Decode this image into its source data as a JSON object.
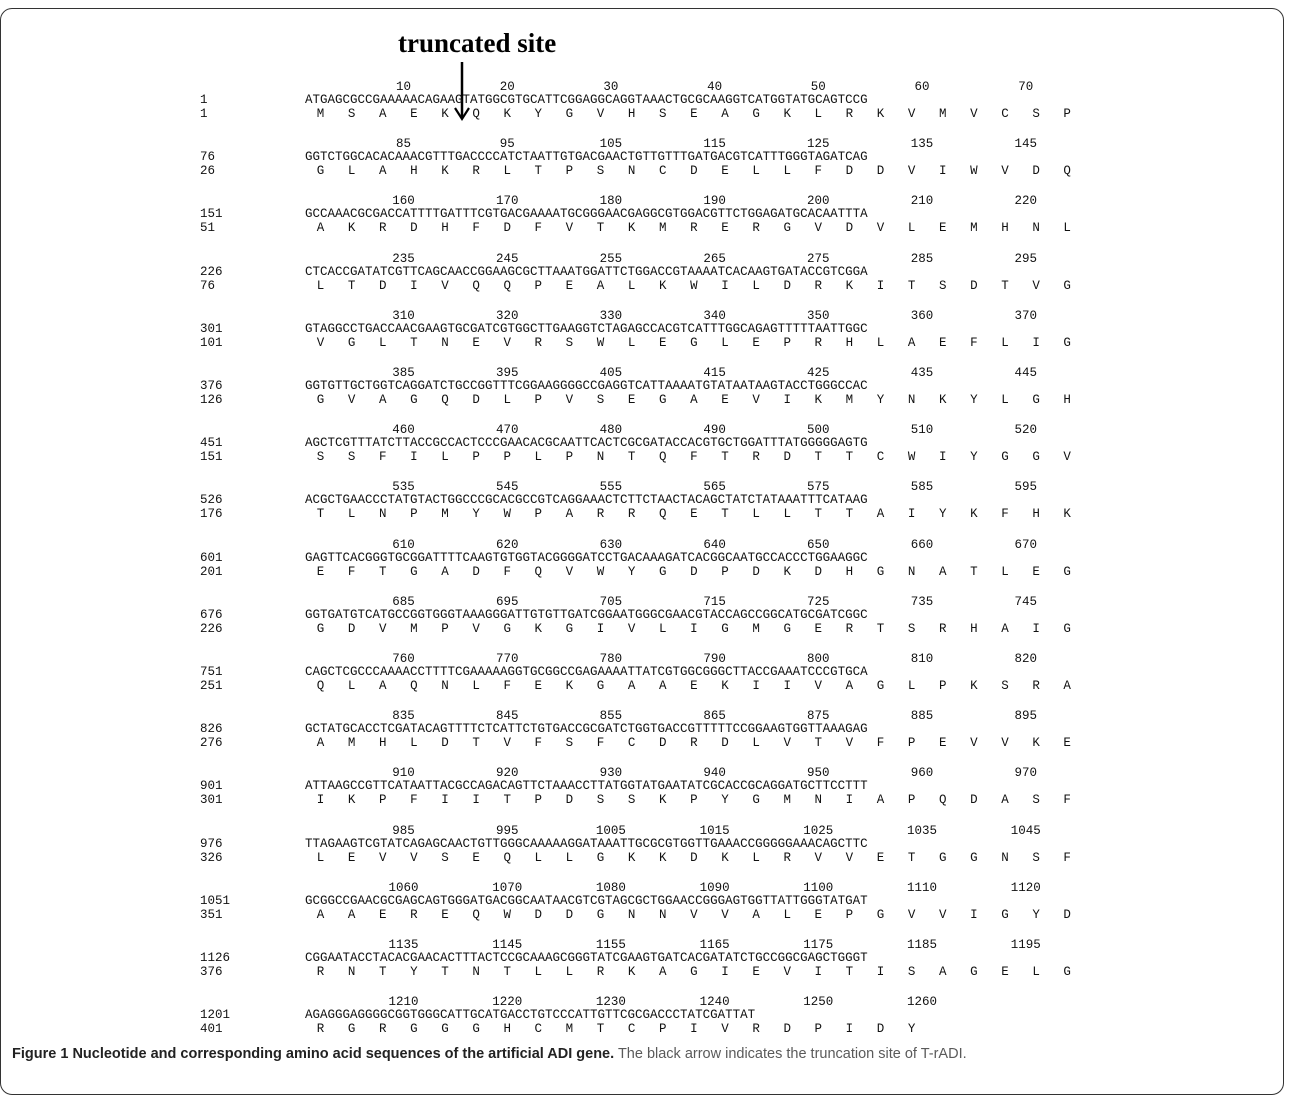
{
  "annotation": {
    "label": "truncated site"
  },
  "caption": {
    "figure_label": "Figure 1",
    "title": "Nucleotide and corresponding amino acid sequences of the artificial ADI gene.",
    "text": "The black arrow indicates the truncation site of T-rADI."
  },
  "blocks": [
    {
      "positions": [
        "10",
        "20",
        "30",
        "40",
        "50",
        "60",
        "70"
      ],
      "nt_start": "1",
      "aa_start": "1",
      "nt": "ATGAGCGCCGAAAAACAGAAGTATGGCGTGCATTCGGAGGCAGGTAAACTGCGCAAGGTCATGGTATGCAGTCCG",
      "aa": [
        "M",
        "S",
        "A",
        "E",
        "K",
        "Q",
        "K",
        "Y",
        "G",
        "V",
        "H",
        "S",
        "E",
        "A",
        "G",
        "K",
        "L",
        "R",
        "K",
        "V",
        "M",
        "V",
        "C",
        "S",
        "P"
      ]
    },
    {
      "positions": [
        "85",
        "95",
        "105",
        "115",
        "125",
        "135",
        "145"
      ],
      "nt_start": "76",
      "aa_start": "26",
      "nt": "GGTCTGGCACACAAACGTTTGACCCCATCTAATTGTGACGAACTGTTGTTTGATGACGTCATTTGGGTAGATCAG",
      "aa": [
        "G",
        "L",
        "A",
        "H",
        "K",
        "R",
        "L",
        "T",
        "P",
        "S",
        "N",
        "C",
        "D",
        "E",
        "L",
        "L",
        "F",
        "D",
        "D",
        "V",
        "I",
        "W",
        "V",
        "D",
        "Q"
      ]
    },
    {
      "positions": [
        "160",
        "170",
        "180",
        "190",
        "200",
        "210",
        "220"
      ],
      "nt_start": "151",
      "aa_start": "51",
      "nt": "GCCAAACGCGACCATTTTGATTTCGTGACGAAAATGCGGGAACGAGGCGTGGACGTTCTGGAGATGCACAATTTA",
      "aa": [
        "A",
        "K",
        "R",
        "D",
        "H",
        "F",
        "D",
        "F",
        "V",
        "T",
        "K",
        "M",
        "R",
        "E",
        "R",
        "G",
        "V",
        "D",
        "V",
        "L",
        "E",
        "M",
        "H",
        "N",
        "L"
      ]
    },
    {
      "positions": [
        "235",
        "245",
        "255",
        "265",
        "275",
        "285",
        "295"
      ],
      "nt_start": "226",
      "aa_start": "76",
      "nt": "CTCACCGATATCGTTCAGCAACCGGAAGCGCTTAAATGGATTCTGGACCGTAAAATCACAAGTGATACCGTCGGA",
      "aa": [
        "L",
        "T",
        "D",
        "I",
        "V",
        "Q",
        "Q",
        "P",
        "E",
        "A",
        "L",
        "K",
        "W",
        "I",
        "L",
        "D",
        "R",
        "K",
        "I",
        "T",
        "S",
        "D",
        "T",
        "V",
        "G"
      ]
    },
    {
      "positions": [
        "310",
        "320",
        "330",
        "340",
        "350",
        "360",
        "370"
      ],
      "nt_start": "301",
      "aa_start": "101",
      "nt": "GTAGGCCTGACCAACGAAGTGCGATCGTGGCTTGAAGGTCTAGAGCCACGTCATTTGGCAGAGTTTTTAATTGGC",
      "aa": [
        "V",
        "G",
        "L",
        "T",
        "N",
        "E",
        "V",
        "R",
        "S",
        "W",
        "L",
        "E",
        "G",
        "L",
        "E",
        "P",
        "R",
        "H",
        "L",
        "A",
        "E",
        "F",
        "L",
        "I",
        "G"
      ]
    },
    {
      "positions": [
        "385",
        "395",
        "405",
        "415",
        "425",
        "435",
        "445"
      ],
      "nt_start": "376",
      "aa_start": "126",
      "nt": "GGTGTTGCTGGTCAGGATCTGCCGGTTTCGGAAGGGGCCGAGGTCATTAAAATGTATAATAAGTACCTGGGCCAC",
      "aa": [
        "G",
        "V",
        "A",
        "G",
        "Q",
        "D",
        "L",
        "P",
        "V",
        "S",
        "E",
        "G",
        "A",
        "E",
        "V",
        "I",
        "K",
        "M",
        "Y",
        "N",
        "K",
        "Y",
        "L",
        "G",
        "H"
      ]
    },
    {
      "positions": [
        "460",
        "470",
        "480",
        "490",
        "500",
        "510",
        "520"
      ],
      "nt_start": "451",
      "aa_start": "151",
      "nt": "AGCTCGTTTATCTTACCGCCACTCCCGAACACGCAATTCACTCGCGATACCACGTGCTGGATTTATGGGGGAGTG",
      "aa": [
        "S",
        "S",
        "F",
        "I",
        "L",
        "P",
        "P",
        "L",
        "P",
        "N",
        "T",
        "Q",
        "F",
        "T",
        "R",
        "D",
        "T",
        "T",
        "C",
        "W",
        "I",
        "Y",
        "G",
        "G",
        "V"
      ]
    },
    {
      "positions": [
        "535",
        "545",
        "555",
        "565",
        "575",
        "585",
        "595"
      ],
      "nt_start": "526",
      "aa_start": "176",
      "nt": "ACGCTGAACCCTATGTACTGGCCCGCACGCCGTCAGGAAACTCTTCTAACTACAGCTATCTATAAATTTCATAAG",
      "aa": [
        "T",
        "L",
        "N",
        "P",
        "M",
        "Y",
        "W",
        "P",
        "A",
        "R",
        "R",
        "Q",
        "E",
        "T",
        "L",
        "L",
        "T",
        "T",
        "A",
        "I",
        "Y",
        "K",
        "F",
        "H",
        "K"
      ]
    },
    {
      "positions": [
        "610",
        "620",
        "630",
        "640",
        "650",
        "660",
        "670"
      ],
      "nt_start": "601",
      "aa_start": "201",
      "nt": "GAGTTCACGGGTGCGGATTTTCAAGTGTGGTACGGGGATCCTGACAAAGATCACGGCAATGCCACCCTGGAAGGC",
      "aa": [
        "E",
        "F",
        "T",
        "G",
        "A",
        "D",
        "F",
        "Q",
        "V",
        "W",
        "Y",
        "G",
        "D",
        "P",
        "D",
        "K",
        "D",
        "H",
        "G",
        "N",
        "A",
        "T",
        "L",
        "E",
        "G"
      ]
    },
    {
      "positions": [
        "685",
        "695",
        "705",
        "715",
        "725",
        "735",
        "745"
      ],
      "nt_start": "676",
      "aa_start": "226",
      "nt": "GGTGATGTCATGCCGGTGGGTAAAGGGATTGTGTTGATCGGAATGGGCGAACGTACCAGCCGGCATGCGATCGGC",
      "aa": [
        "G",
        "D",
        "V",
        "M",
        "P",
        "V",
        "G",
        "K",
        "G",
        "I",
        "V",
        "L",
        "I",
        "G",
        "M",
        "G",
        "E",
        "R",
        "T",
        "S",
        "R",
        "H",
        "A",
        "I",
        "G"
      ]
    },
    {
      "positions": [
        "760",
        "770",
        "780",
        "790",
        "800",
        "810",
        "820"
      ],
      "nt_start": "751",
      "aa_start": "251",
      "nt": "CAGCTCGCCCAAAACCTTTTCGAAAAAGGTGCGGCCGAGAAAATTATCGTGGCGGGCTTACCGAAATCCCGTGCA",
      "aa": [
        "Q",
        "L",
        "A",
        "Q",
        "N",
        "L",
        "F",
        "E",
        "K",
        "G",
        "A",
        "A",
        "E",
        "K",
        "I",
        "I",
        "V",
        "A",
        "G",
        "L",
        "P",
        "K",
        "S",
        "R",
        "A"
      ]
    },
    {
      "positions": [
        "835",
        "845",
        "855",
        "865",
        "875",
        "885",
        "895"
      ],
      "nt_start": "826",
      "aa_start": "276",
      "nt": "GCTATGCACCTCGATACAGTTTTCTCATTCTGTGACCGCGATCTGGTGACCGTTTTTCCGGAAGTGGTTAAAGAG",
      "aa": [
        "A",
        "M",
        "H",
        "L",
        "D",
        "T",
        "V",
        "F",
        "S",
        "F",
        "C",
        "D",
        "R",
        "D",
        "L",
        "V",
        "T",
        "V",
        "F",
        "P",
        "E",
        "V",
        "V",
        "K",
        "E"
      ]
    },
    {
      "positions": [
        "910",
        "920",
        "930",
        "940",
        "950",
        "960",
        "970"
      ],
      "nt_start": "901",
      "aa_start": "301",
      "nt": "ATTAAGCCGTTCATAATTACGCCAGACAGTTCTAAACCTTATGGTATGAATATCGCACCGCAGGATGCTTCCTTT",
      "aa": [
        "I",
        "K",
        "P",
        "F",
        "I",
        "I",
        "T",
        "P",
        "D",
        "S",
        "S",
        "K",
        "P",
        "Y",
        "G",
        "M",
        "N",
        "I",
        "A",
        "P",
        "Q",
        "D",
        "A",
        "S",
        "F"
      ]
    },
    {
      "positions": [
        "985",
        "995",
        "1005",
        "1015",
        "1025",
        "1035",
        "1045"
      ],
      "nt_start": "976",
      "aa_start": "326",
      "nt": "TTAGAAGTCGTATCAGAGCAACTGTTGGGCAAAAAGGATAAATTGCGCGTGGTTGAAACCGGGGGAAACAGCTTC",
      "aa": [
        "L",
        "E",
        "V",
        "V",
        "S",
        "E",
        "Q",
        "L",
        "L",
        "G",
        "K",
        "K",
        "D",
        "K",
        "L",
        "R",
        "V",
        "V",
        "E",
        "T",
        "G",
        "G",
        "N",
        "S",
        "F"
      ]
    },
    {
      "positions": [
        "1060",
        "1070",
        "1080",
        "1090",
        "1100",
        "1110",
        "1120"
      ],
      "nt_start": "1051",
      "aa_start": "351",
      "nt": "GCGGCCGAACGCGAGCAGTGGGATGACGGCAATAACGTCGTAGCGCTGGAACCGGGAGTGGTTATTGGGTATGAT",
      "aa": [
        "A",
        "A",
        "E",
        "R",
        "E",
        "Q",
        "W",
        "D",
        "D",
        "G",
        "N",
        "N",
        "V",
        "V",
        "A",
        "L",
        "E",
        "P",
        "G",
        "V",
        "V",
        "I",
        "G",
        "Y",
        "D"
      ]
    },
    {
      "positions": [
        "1135",
        "1145",
        "1155",
        "1165",
        "1175",
        "1185",
        "1195"
      ],
      "nt_start": "1126",
      "aa_start": "376",
      "nt": "CGGAATACCTACACGAACACTTTACTCCGCAAAGCGGGTATCGAAGTGATCACGATATCTGCCGGCGAGCTGGGT",
      "aa": [
        "R",
        "N",
        "T",
        "Y",
        "T",
        "N",
        "T",
        "L",
        "L",
        "R",
        "K",
        "A",
        "G",
        "I",
        "E",
        "V",
        "I",
        "T",
        "I",
        "S",
        "A",
        "G",
        "E",
        "L",
        "G"
      ]
    },
    {
      "positions": [
        "1210",
        "1220",
        "1230",
        "1240",
        "1250",
        "1260"
      ],
      "nt_start": "1201",
      "aa_start": "401",
      "nt": "AGAGGGAGGGGCGGTGGGCATTGCATGACCTGTCCCATTGTTCGCGACCCTATCGATTAT",
      "aa": [
        "R",
        "G",
        "R",
        "G",
        "G",
        "G",
        "H",
        "C",
        "M",
        "T",
        "C",
        "P",
        "I",
        "V",
        "R",
        "D",
        "P",
        "I",
        "D",
        "Y"
      ]
    }
  ]
}
